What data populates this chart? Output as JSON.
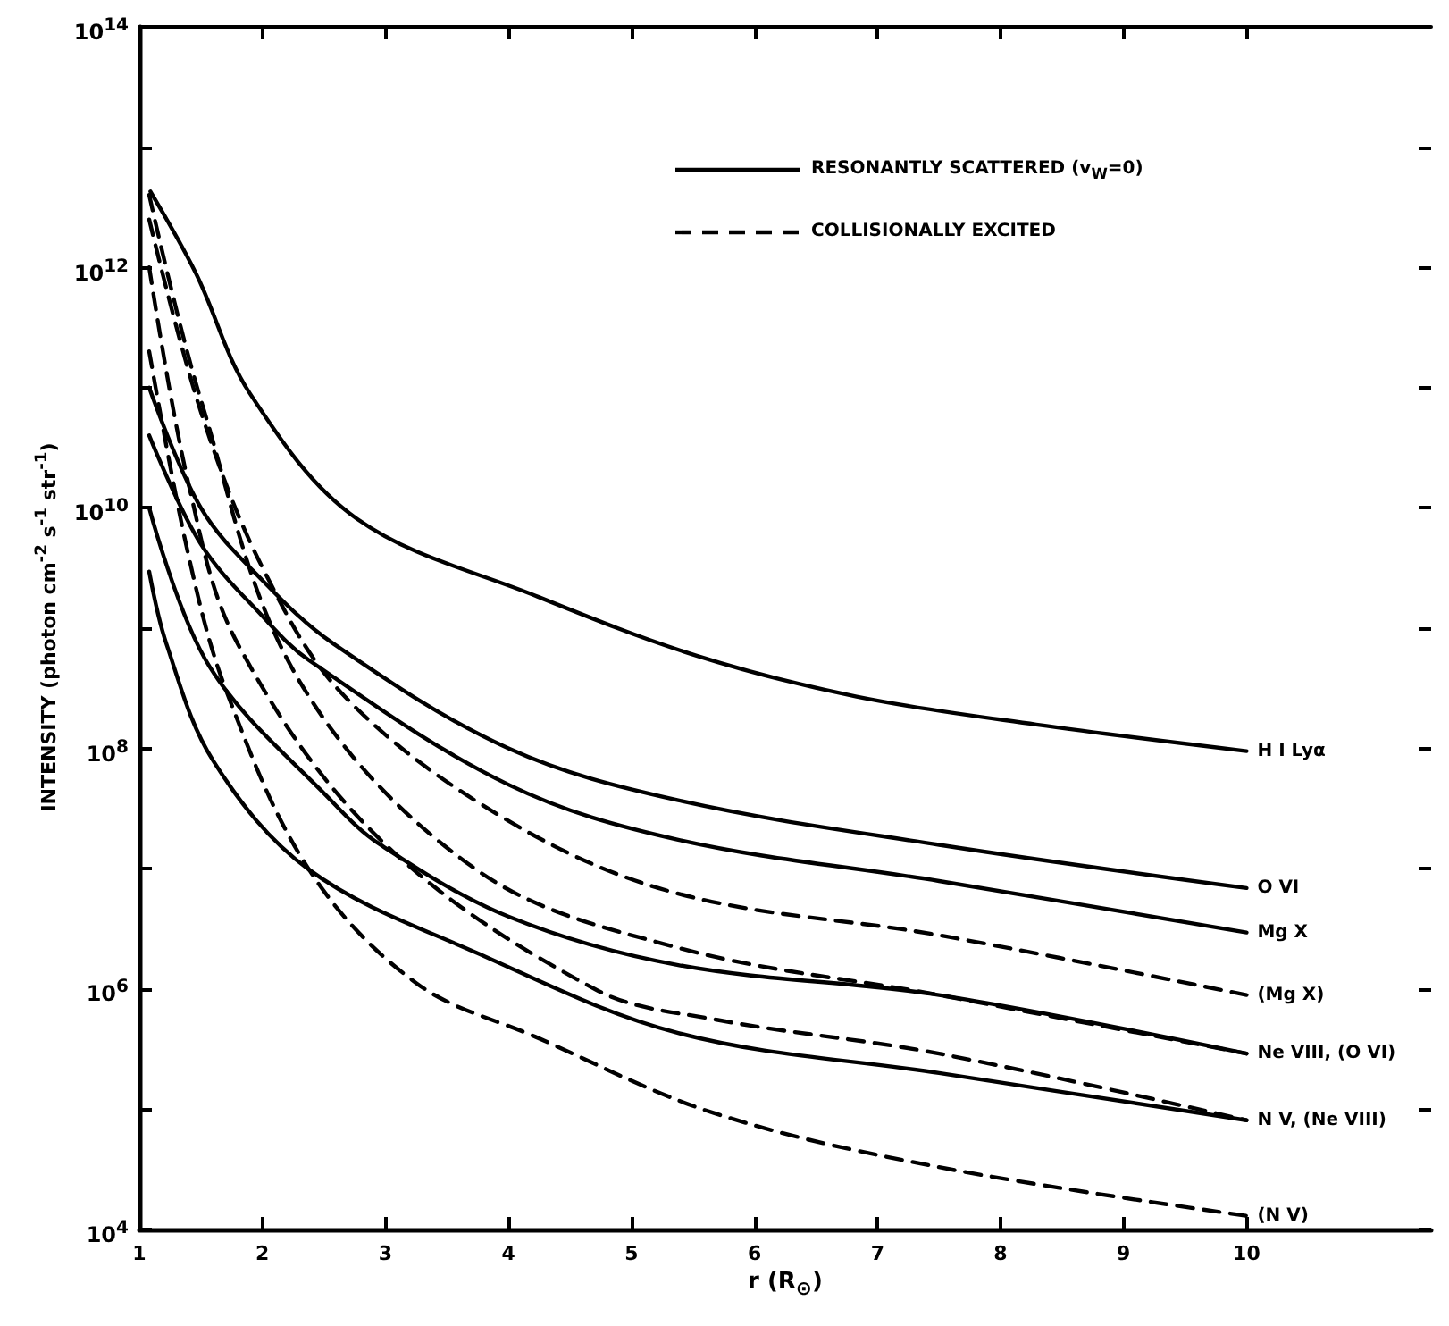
{
  "chart_data": {
    "type": "line",
    "xlabel": "r (R$_{⊙}$)",
    "ylabel": "INTENSITY (photon cm$^{-2}$ s$^{-1}$ str$^{-1}$)",
    "log": "y",
    "xlim": [
      1,
      11.5
    ],
    "xticks": [
      1,
      2,
      3,
      4,
      5,
      6,
      7,
      8,
      9,
      10
    ],
    "ylim": [
      10000,
      100000000000000
    ],
    "yticks": [
      {
        "value": 10000,
        "label": "10$^{4}$"
      },
      {
        "value": 100000,
        "label": null
      },
      {
        "value": 1000000,
        "label": "10$^{6}$"
      },
      {
        "value": 10000000,
        "label": null
      },
      {
        "value": 100000000,
        "label": "10$^{8}$"
      },
      {
        "value": 1000000000,
        "label": null
      },
      {
        "value": 10000000000,
        "label": "10$^{10}$"
      },
      {
        "value": 100000000000,
        "label": null
      },
      {
        "value": 1000000000000,
        "label": "10$^{12}$"
      },
      {
        "value": 10000000000000,
        "label": null
      },
      {
        "value": 100000000000000,
        "label": "10$^{14}$"
      }
    ],
    "grid": false,
    "marker": "none",
    "series": [
      {
        "name": "H I Lyα",
        "color": "#000000",
        "line_style": "solid",
        "x": [
          1.09,
          1.46,
          1.9,
          2.77,
          4.22,
          5.53,
          6.83,
          8.29,
          10
        ],
        "values": [
          4270000000000.0,
          890000000000.0,
          89000000000.0,
          8100000000.0,
          1860000000.0,
          590000000.0,
          270000000.0,
          158000000.0,
          95000000.0
        ]
      },
      {
        "name": "O VI",
        "color": "#000000",
        "line_style": "solid",
        "x": [
          1.08,
          1.5,
          2.0,
          2.58,
          4,
          5.38,
          7.5,
          10
        ],
        "values": [
          100000000000.0,
          10000000000.0,
          2500000000.0,
          740000000.0,
          100000000.0,
          37000000.0,
          15800000.0,
          6900000.0
        ]
      },
      {
        "name": "Mg X",
        "color": "#000000",
        "line_style": "solid",
        "x": [
          1.08,
          1.5,
          2.0,
          2.38,
          4,
          5.38,
          7.5,
          10
        ],
        "values": [
          40000000000.0,
          5000000000.0,
          1260000000.0,
          540000000.0,
          50000000.0,
          17400000.0,
          7900000.0,
          2950000.0
        ]
      },
      {
        "name": "(Mg X)",
        "color": "#000000",
        "line_style": "dashed",
        "x": [
          1.08,
          1.5,
          2.0,
          2.67,
          4,
          5.38,
          7.5,
          10
        ],
        "values": [
          2500000000000.0,
          63000000000.0,
          3200000000.0,
          270000000.0,
          25000000.0,
          6200000.0,
          2800000.0,
          890000.0
        ]
      },
      {
        "name": "Ne VIII, (O VI)",
        "color": "#000000",
        "line_style": "solid",
        "x": [
          1.08,
          1.57,
          2.58,
          2.96,
          4,
          5.38,
          7.5,
          10
        ],
        "values": [
          10000000000.0,
          480000000.0,
          35000000.0,
          15800000.0,
          4000000.0,
          1580000.0,
          890000.0,
          290000.0
        ]
      },
      {
        "color": "#000000",
        "line_style": "dashed",
        "x": [
          1.08,
          1.5,
          2.29,
          3.74,
          5.38,
          7.5,
          10
        ],
        "values": [
          4000000000000.0,
          79000000000.0,
          380000000.0,
          9800000.0,
          2200000.0,
          890000.0,
          290000.0
        ]
      },
      {
        "color": "#000000",
        "line_style": "dashed",
        "x": [
          1.08,
          1.4,
          1.8,
          2.96,
          4.7,
          5.67,
          7.5,
          10
        ],
        "values": [
          1000000000000.0,
          15800000000.0,
          740000000.0,
          17400000.0,
          1000000.0,
          560000.0,
          290000.0,
          81000.0
        ]
      },
      {
        "name": "N V, (Ne VIII)",
        "color": "#000000",
        "line_style": "solid",
        "x": [
          1.08,
          1.22,
          1.6,
          2.38,
          3.74,
          5.38,
          7.5,
          10
        ],
        "values": [
          2950000000.0,
          740000000.0,
          79000000.0,
          9800000.0,
          2000000.0,
          430000.0,
          200000.0,
          81000.0
        ]
      },
      {
        "name": "(N V)",
        "color": "#000000",
        "line_style": "dashed",
        "x": [
          1.08,
          1.4,
          1.71,
          2.38,
          3.25,
          4.22,
          5.67,
          7.5,
          10
        ],
        "values": [
          200000000000.0,
          4000000000.0,
          295000000.0,
          9800000.0,
          1120000.0,
          400000.0,
          93000.0,
          33000.0,
          13000.0
        ]
      }
    ],
    "annotations": [
      "RESONANTLY SCATTERED (v$_{W}$=0)",
      "COLLISIONALLY EXCITED"
    ]
  }
}
